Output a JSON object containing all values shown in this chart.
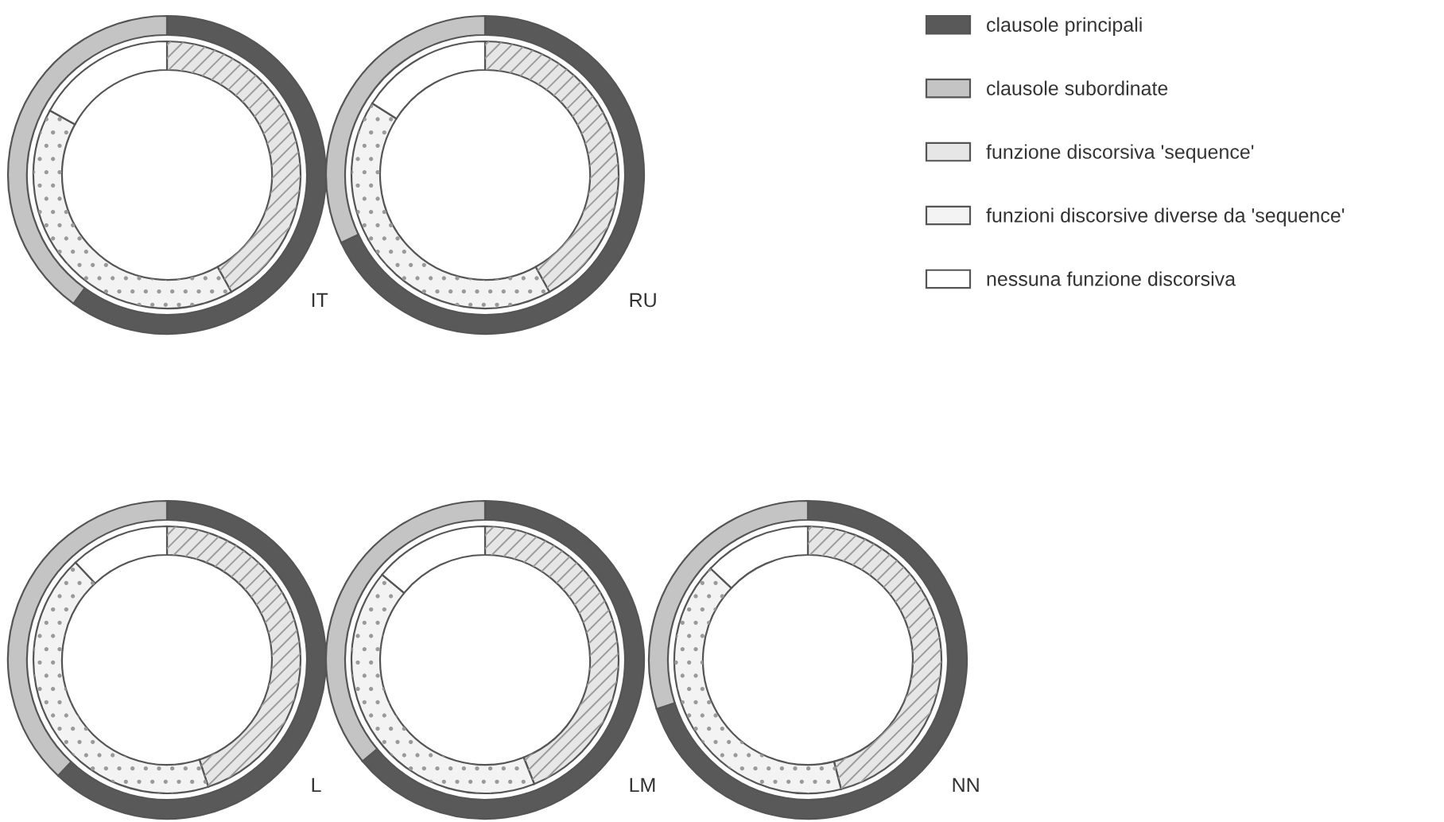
{
  "chart_data": [
    {
      "type": "donut",
      "title": "IT",
      "legend": "right",
      "categories": [
        "clausole principali",
        "clausole subordinate",
        "funzione discorsiva 'sequence'",
        "funzioni discorsive diverse da 'sequence'",
        "nessuna funzione discorsiva"
      ],
      "colors": [
        "#595959",
        "#c4c4c4",
        "#e6e6e6",
        "#f3f3f3",
        "#ffffff"
      ],
      "series": [
        {
          "values": [
            60,
            40,
            null,
            null,
            null
          ]
        },
        {
          "values": [
            null,
            null,
            42,
            41,
            17
          ]
        }
      ]
    },
    {
      "type": "donut",
      "title": "RU",
      "categories": [
        null,
        null,
        null,
        null,
        null
      ],
      "colors": [
        "#595959",
        "#c4c4c4",
        "#e6e6e6",
        "#f3f3f3",
        "#ffffff"
      ],
      "series": [
        {
          "values": [
            68,
            32,
            null,
            null,
            null
          ]
        },
        {
          "values": [
            null,
            null,
            42,
            42,
            16
          ]
        }
      ]
    },
    {
      "type": "donut",
      "title": "L",
      "categories": [
        null,
        null,
        null,
        null,
        null
      ],
      "colors": [
        "#595959",
        "#c4c4c4",
        "#e6e6e6",
        "#f3f3f3",
        "#ffffff"
      ],
      "series": [
        {
          "values": [
            62,
            38,
            null,
            null,
            null
          ]
        },
        {
          "values": [
            null,
            null,
            45,
            43,
            12
          ]
        }
      ]
    },
    {
      "type": "donut",
      "title": "LM",
      "categories": [
        null,
        null,
        null,
        null,
        null
      ],
      "colors": [
        "#595959",
        "#c4c4c4",
        "#e6e6e6",
        "#f3f3f3",
        "#ffffff"
      ],
      "series": [
        {
          "values": [
            64,
            36,
            null,
            null,
            null
          ]
        },
        {
          "values": [
            null,
            null,
            44,
            42,
            14
          ]
        }
      ]
    },
    {
      "type": "donut",
      "title": "NN",
      "categories": [
        null,
        null,
        null,
        null,
        null
      ],
      "colors": [
        "#595959",
        "#c4c4c4",
        "#e6e6e6",
        "#f3f3f3",
        "#ffffff"
      ],
      "series": [
        {
          "values": [
            70,
            30,
            null,
            null,
            null
          ]
        },
        {
          "values": [
            null,
            null,
            46,
            41,
            13
          ]
        }
      ]
    }
  ]
}
